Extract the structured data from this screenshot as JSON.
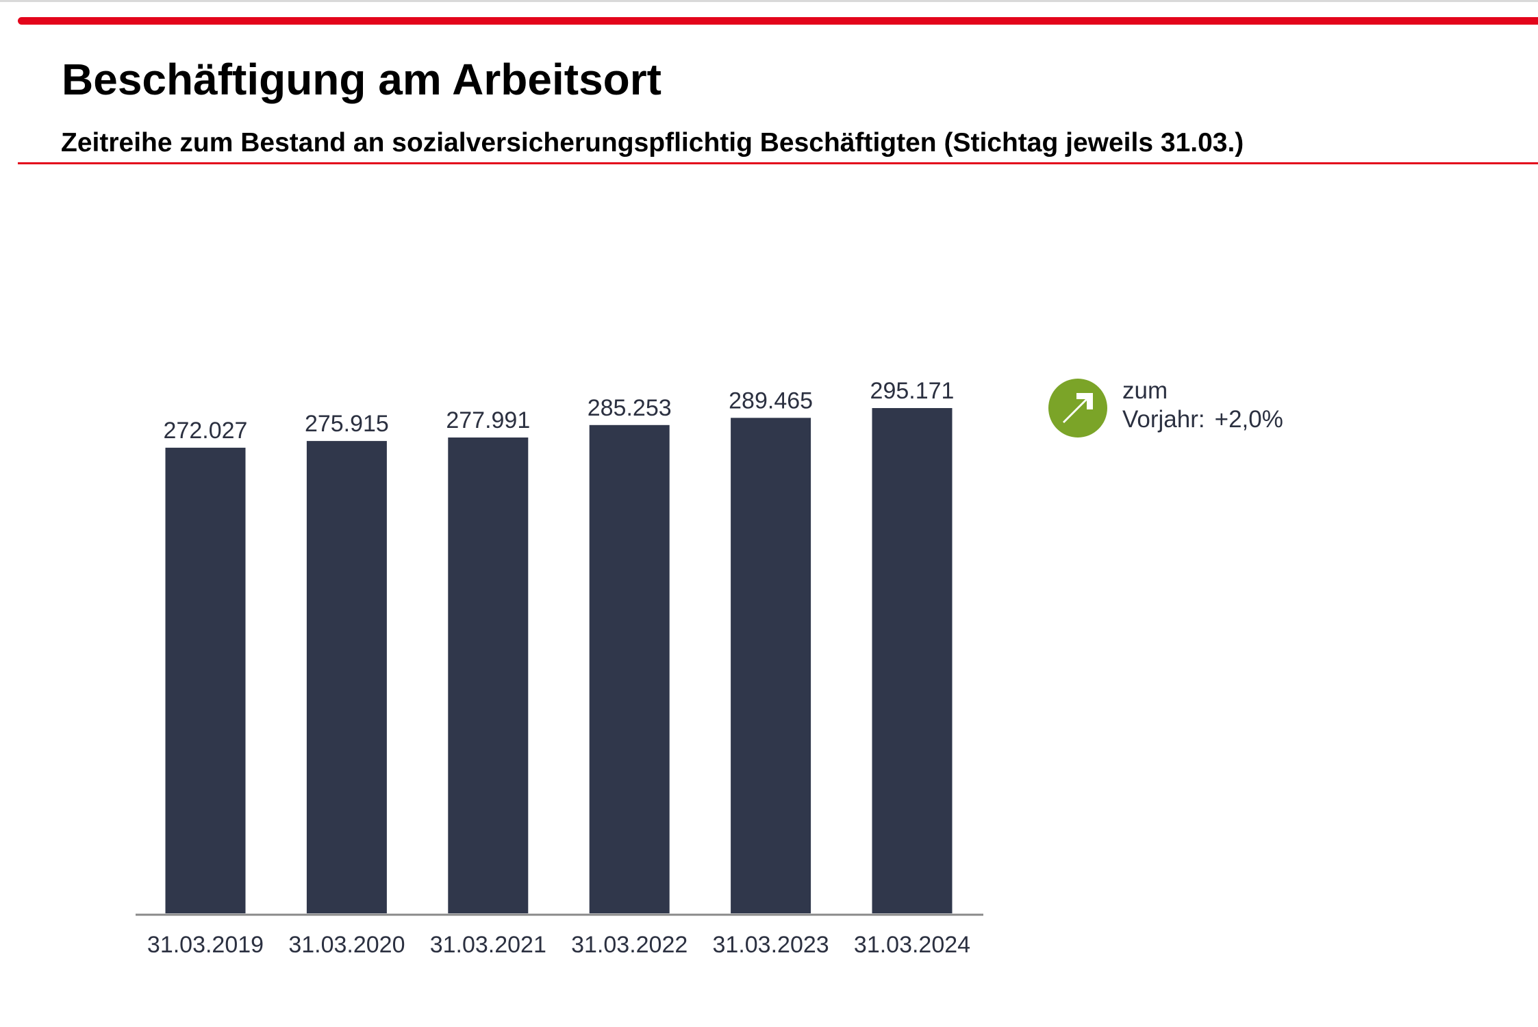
{
  "header": {
    "title": "Beschäftigung am Arbeitsort",
    "subtitle": "Zeitreihe zum Bestand an sozialversicherungspflichtig Beschäftigten (Stichtag jeweils 31.03.)"
  },
  "colors": {
    "accent": "#e3051b",
    "bar": "#30374b",
    "trend": "#7ba428",
    "text": "#2b3040"
  },
  "trend": {
    "icon": "arrow-up-right-icon",
    "label_line1": "zum",
    "label_line2": "Vorjahr:",
    "value": "+2,0%"
  },
  "chart_data": {
    "type": "bar",
    "title": "",
    "xlabel": "",
    "ylabel": "",
    "categories": [
      "31.03.2019",
      "31.03.2020",
      "31.03.2021",
      "31.03.2022",
      "31.03.2023",
      "31.03.2024"
    ],
    "values": [
      272027,
      275915,
      277991,
      285253,
      289465,
      295171
    ],
    "value_labels": [
      "272.027",
      "275.915",
      "277.991",
      "285.253",
      "289.465",
      "295.171"
    ],
    "ylim": [
      0,
      295171
    ],
    "grid": false,
    "legend": "none"
  }
}
